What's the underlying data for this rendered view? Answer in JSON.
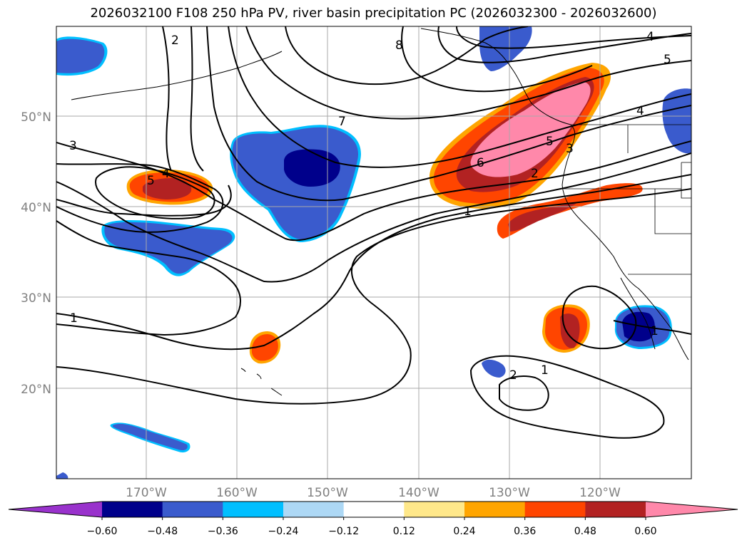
{
  "title": "2026032100 F108 250 hPa PV, river basin precipitation PC (2026032300 - 2026032600)",
  "axes": {
    "lat_labels": [
      "50°N",
      "40°N",
      "30°N",
      "20°N"
    ],
    "lon_labels": [
      "170°W",
      "160°W",
      "150°W",
      "140°W",
      "130°W",
      "120°W"
    ],
    "grid": true
  },
  "colorbar": {
    "levels": [
      "−0.60",
      "−0.48",
      "−0.36",
      "−0.24",
      "−0.12",
      "0.12",
      "0.24",
      "0.36",
      "0.48",
      "0.60"
    ],
    "colors": [
      "#9932cc",
      "#00008b",
      "#3a5bcd",
      "#00bfff",
      "#add8f5",
      "#ffffff",
      "#ffe88a",
      "#ffa500",
      "#ff4500",
      "#b22222",
      "#ff88aa"
    ],
    "extend": "both"
  },
  "contour_labels": [
    "2",
    "8",
    "4",
    "5",
    "7",
    "3",
    "5",
    "4",
    "6",
    "5",
    "4",
    "3",
    "2",
    "1",
    "1",
    "1",
    "2",
    "1",
    "1"
  ]
}
